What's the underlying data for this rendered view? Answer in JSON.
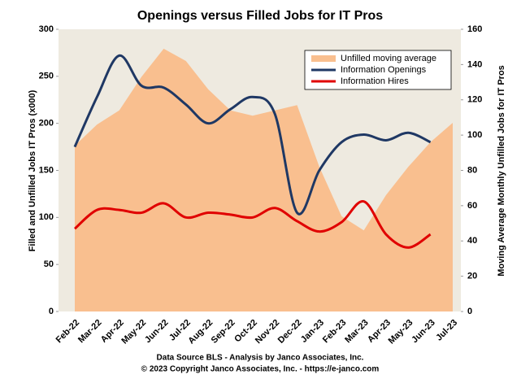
{
  "chart_data": {
    "type": "line",
    "title": "Openings versus Filled Jobs for IT Pros",
    "ylabel": "Filled and Unfilled Jobs IT Pros (x000)",
    "y2label": "Moving Average Monthly Unfilled Jobs for IT Pros",
    "footer": [
      "Data Source BLS - Analysis by Janco Associates, Inc.",
      "© 2023 Copyright Janco Associates, Inc. - https://e-janco.com"
    ],
    "categories": [
      "Feb-22",
      "Mar-22",
      "Apr-22",
      "May-22",
      "Jun-22",
      "Jul-22",
      "Aug-22",
      "Sep-22",
      "Oct-22",
      "Nov-22",
      "Dec-22",
      "Jan-23",
      "Feb-23",
      "Mar-23",
      "Apr-23",
      "May-23",
      "Jun-23",
      "Jul-23"
    ],
    "series": [
      {
        "name": "Unfilled moving average",
        "color": "#f9bf8f",
        "kind": "area",
        "axis": "y2",
        "values": [
          94,
          106,
          114,
          133,
          149,
          142,
          126,
          114,
          111,
          114,
          117,
          82,
          54,
          46,
          66,
          82,
          96,
          107
        ]
      },
      {
        "name": "Information Openings",
        "color": "#1f3864",
        "values": [
          175,
          228,
          272,
          240,
          238,
          220,
          200,
          215,
          228,
          210,
          105,
          150,
          180,
          188,
          182,
          190,
          180,
          null
        ]
      },
      {
        "name": "Information Hires",
        "color": "#e00000",
        "values": [
          88,
          108,
          108,
          105,
          115,
          100,
          105,
          103,
          100,
          110,
          96,
          85,
          95,
          117,
          82,
          68,
          82,
          null
        ]
      }
    ],
    "ylim": [
      0,
      300
    ],
    "yticks": [
      0,
      50,
      100,
      150,
      200,
      250,
      300
    ],
    "y2lim": [
      0,
      160
    ],
    "y2ticks": [
      0,
      20,
      40,
      60,
      80,
      100,
      120,
      140,
      160
    ],
    "legend": "top-right"
  }
}
